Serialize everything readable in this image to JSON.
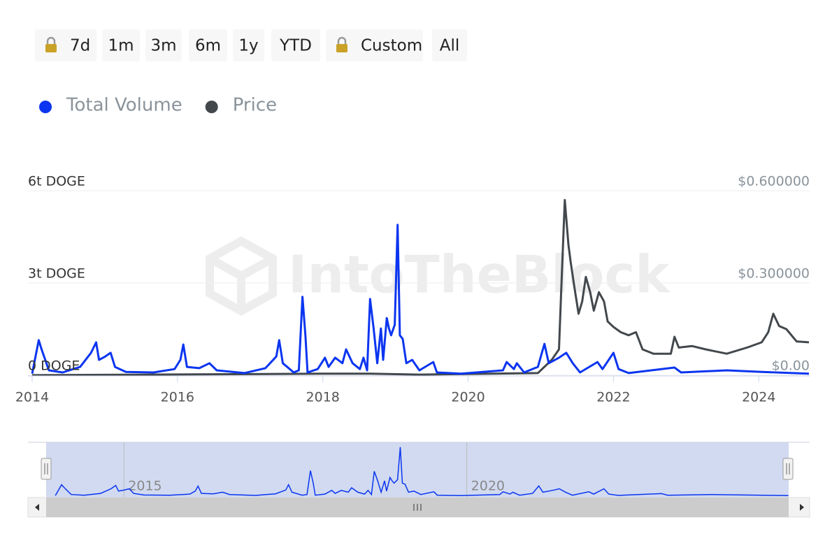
{
  "buttons": [
    {
      "label": "7d",
      "locked": true
    },
    {
      "label": "1m",
      "locked": false
    },
    {
      "label": "3m",
      "locked": false
    },
    {
      "label": "6m",
      "locked": false
    },
    {
      "label": "1y",
      "locked": false
    },
    {
      "label": "YTD",
      "locked": false
    },
    {
      "label": "Custom",
      "locked": true
    },
    {
      "label": "All",
      "locked": false
    }
  ],
  "watermark": "IntoTheBlock",
  "chart_data": {
    "type": "line",
    "xlim": [
      2014,
      2024.7
    ],
    "xticks": [
      2014,
      2016,
      2018,
      2020,
      2022,
      2024
    ],
    "ylim": [
      0,
      6000000000000.0
    ],
    "yticks": [
      {
        "value": 0,
        "label": "0 DOGE"
      },
      {
        "value": 3000000000000.0,
        "label": "3t DOGE"
      },
      {
        "value": 6000000000000.0,
        "label": "6t DOGE"
      }
    ],
    "y2lim": [
      0,
      0.6
    ],
    "y2ticks": [
      {
        "value": 0,
        "label": "$0.00"
      },
      {
        "value": 0.3,
        "label": "$0.300000"
      },
      {
        "value": 0.6,
        "label": "$0.600000"
      }
    ],
    "grid": true,
    "series": [
      {
        "name": "Total Volume",
        "color": "#0b35f0",
        "x": [
          2014.0,
          2014.09,
          2014.13,
          2014.23,
          2014.42,
          2014.66,
          2014.81,
          2014.88,
          2014.92,
          2015.0,
          2015.08,
          2015.14,
          2015.29,
          2015.67,
          2015.96,
          2016.04,
          2016.08,
          2016.13,
          2016.3,
          2016.44,
          2016.54,
          2016.92,
          2017.21,
          2017.36,
          2017.4,
          2017.45,
          2017.6,
          2017.67,
          2017.72,
          2017.76,
          2017.79,
          2017.93,
          2018.03,
          2018.08,
          2018.17,
          2018.27,
          2018.32,
          2018.41,
          2018.51,
          2018.56,
          2018.61,
          2018.65,
          2018.7,
          2018.75,
          2018.8,
          2018.83,
          2018.88,
          2018.91,
          2018.94,
          2018.99,
          2019.03,
          2019.06,
          2019.1,
          2019.15,
          2019.23,
          2019.33,
          2019.52,
          2019.57,
          2019.9,
          2020.48,
          2020.53,
          2020.63,
          2020.67,
          2020.77,
          2020.96,
          2021.05,
          2021.11,
          2021.25,
          2021.35,
          2021.44,
          2021.54,
          2021.78,
          2021.85,
          2022.0,
          2022.07,
          2022.21,
          2022.84,
          2022.93,
          2023.56,
          2024.04,
          2024.69
        ],
        "values": [
          50000000000.0,
          1140000000000.0,
          840000000000.0,
          160000000000.0,
          90000000000.0,
          270000000000.0,
          730000000000.0,
          1070000000000.0,
          500000000000.0,
          600000000000.0,
          730000000000.0,
          270000000000.0,
          110000000000.0,
          90000000000.0,
          200000000000.0,
          500000000000.0,
          1000000000000.0,
          270000000000.0,
          230000000000.0,
          390000000000.0,
          160000000000.0,
          70000000000.0,
          230000000000.0,
          610000000000.0,
          1140000000000.0,
          390000000000.0,
          90000000000.0,
          160000000000.0,
          2550000000000.0,
          1300000000000.0,
          90000000000.0,
          200000000000.0,
          570000000000.0,
          270000000000.0,
          570000000000.0,
          390000000000.0,
          840000000000.0,
          390000000000.0,
          200000000000.0,
          570000000000.0,
          160000000000.0,
          2480000000000.0,
          1520000000000.0,
          390000000000.0,
          1520000000000.0,
          500000000000.0,
          1860000000000.0,
          1520000000000.0,
          1300000000000.0,
          1640000000000.0,
          4890000000000.0,
          1300000000000.0,
          1180000000000.0,
          390000000000.0,
          500000000000.0,
          160000000000.0,
          430000000000.0,
          90000000000.0,
          50000000000.0,
          160000000000.0,
          430000000000.0,
          200000000000.0,
          390000000000.0,
          90000000000.0,
          270000000000.0,
          1020000000000.0,
          390000000000.0,
          570000000000.0,
          730000000000.0,
          390000000000.0,
          90000000000.0,
          430000000000.0,
          200000000000.0,
          730000000000.0,
          200000000000.0,
          70000000000.0,
          250000000000.0,
          90000000000.0,
          160000000000.0,
          110000000000.0,
          50000000000.0
        ]
      },
      {
        "name": "Price",
        "color": "#43484d",
        "axis": "y2",
        "x": [
          2014.0,
          2017.98,
          2018.65,
          2019.33,
          2020.96,
          2021.15,
          2021.25,
          2021.28,
          2021.33,
          2021.38,
          2021.41,
          2021.46,
          2021.52,
          2021.57,
          2021.62,
          2021.68,
          2021.73,
          2021.8,
          2021.87,
          2021.92,
          2022.0,
          2022.1,
          2022.21,
          2022.31,
          2022.4,
          2022.55,
          2022.79,
          2022.84,
          2022.9,
          2023.08,
          2023.27,
          2023.56,
          2023.85,
          2024.04,
          2024.13,
          2024.2,
          2024.28,
          2024.38,
          2024.52,
          2024.69
        ],
        "values": [
          0.0002,
          0.005,
          0.005,
          0.002,
          0.007,
          0.05,
          0.084,
          0.27,
          0.57,
          0.425,
          0.37,
          0.29,
          0.2,
          0.24,
          0.32,
          0.27,
          0.21,
          0.27,
          0.24,
          0.175,
          0.157,
          0.14,
          0.13,
          0.14,
          0.084,
          0.07,
          0.07,
          0.125,
          0.09,
          0.095,
          0.084,
          0.07,
          0.091,
          0.107,
          0.14,
          0.2,
          0.16,
          0.15,
          0.11,
          0.107
        ]
      }
    ],
    "navigator": {
      "xlim": [
        2013.6,
        2025
      ],
      "xticks": [
        2015,
        2020
      ]
    }
  }
}
